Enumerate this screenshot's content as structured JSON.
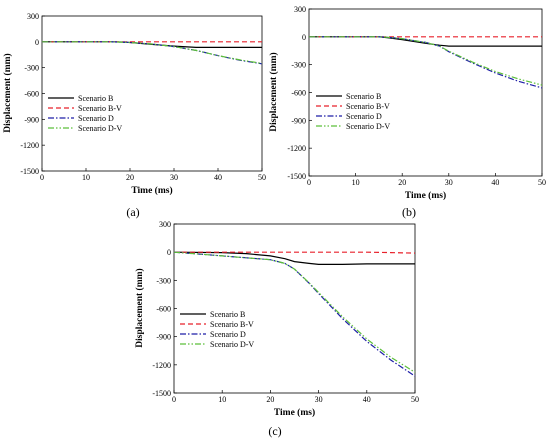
{
  "chart_data": [
    {
      "type": "line",
      "caption": "(a)",
      "xlabel": "Time (ms)",
      "ylabel": "Displacement (mm)",
      "xlim": [
        0,
        50
      ],
      "ylim": [
        -1500,
        300
      ],
      "xticks": [
        0,
        10,
        20,
        30,
        40,
        50
      ],
      "yticks": [
        300,
        0,
        -300,
        -600,
        -900,
        -1200,
        -1500
      ],
      "grid": false,
      "legend_position": "middle-left",
      "series": [
        {
          "name": "Scenario B",
          "color": "#000000",
          "dash": "solid",
          "x": [
            0,
            10,
            15,
            18,
            20,
            25,
            30,
            35,
            40,
            45,
            50
          ],
          "y": [
            0,
            0,
            0,
            -2,
            -8,
            -30,
            -50,
            -65,
            -65,
            -65,
            -65
          ]
        },
        {
          "name": "Scenario B-V",
          "color": "#e8212b",
          "dash": "dashed",
          "x": [
            0,
            10,
            20,
            30,
            40,
            50
          ],
          "y": [
            0,
            0,
            0,
            0,
            0,
            0
          ]
        },
        {
          "name": "Scenario D",
          "color": "#1f1fa8",
          "dash": "dashdot",
          "x": [
            0,
            10,
            15,
            18,
            20,
            25,
            30,
            35,
            40,
            45,
            50
          ],
          "y": [
            0,
            0,
            0,
            -3,
            -8,
            -25,
            -55,
            -100,
            -160,
            -215,
            -255
          ]
        },
        {
          "name": "Scenario D-V",
          "color": "#5cbf3a",
          "dash": "dashdotdot",
          "x": [
            0,
            10,
            15,
            18,
            20,
            25,
            30,
            35,
            40,
            45,
            50
          ],
          "y": [
            0,
            0,
            0,
            -3,
            -8,
            -25,
            -55,
            -100,
            -160,
            -210,
            -250
          ]
        }
      ]
    },
    {
      "type": "line",
      "caption": "(b)",
      "xlabel": "Time (ms)",
      "ylabel": "Displacement (mm)",
      "xlim": [
        0,
        50
      ],
      "ylim": [
        -1500,
        300
      ],
      "xticks": [
        0,
        10,
        20,
        30,
        40,
        50
      ],
      "yticks": [
        300,
        0,
        -300,
        -600,
        -900,
        -1200,
        -1500
      ],
      "grid": false,
      "legend_position": "middle-left",
      "series": [
        {
          "name": "Scenario B",
          "color": "#000000",
          "dash": "solid",
          "x": [
            0,
            10,
            15,
            17,
            20,
            25,
            28,
            30,
            35,
            40,
            45,
            50
          ],
          "y": [
            0,
            0,
            0,
            -10,
            -30,
            -70,
            -90,
            -100,
            -100,
            -100,
            -100,
            -100
          ]
        },
        {
          "name": "Scenario B-V",
          "color": "#e8212b",
          "dash": "dashed",
          "x": [
            0,
            10,
            20,
            30,
            40,
            50
          ],
          "y": [
            0,
            0,
            0,
            0,
            0,
            0
          ]
        },
        {
          "name": "Scenario D",
          "color": "#1f1fa8",
          "dash": "dashdot",
          "x": [
            0,
            10,
            15,
            17,
            20,
            25,
            28,
            30,
            35,
            40,
            45,
            50
          ],
          "y": [
            0,
            0,
            0,
            -5,
            -20,
            -60,
            -100,
            -160,
            -280,
            -390,
            -480,
            -550
          ]
        },
        {
          "name": "Scenario D-V",
          "color": "#5cbf3a",
          "dash": "dashdotdot",
          "x": [
            0,
            10,
            15,
            17,
            20,
            25,
            28,
            30,
            35,
            40,
            45,
            50
          ],
          "y": [
            0,
            0,
            0,
            -5,
            -20,
            -60,
            -100,
            -155,
            -270,
            -375,
            -455,
            -520
          ]
        }
      ]
    },
    {
      "type": "line",
      "caption": "(c)",
      "xlabel": "Time (ms)",
      "ylabel": "Displacement (mm)",
      "xlim": [
        0,
        50
      ],
      "ylim": [
        -1500,
        300
      ],
      "xticks": [
        0,
        10,
        20,
        30,
        40,
        50
      ],
      "yticks": [
        300,
        0,
        -300,
        -600,
        -900,
        -1200,
        -1500
      ],
      "grid": false,
      "legend_position": "middle-left",
      "series": [
        {
          "name": "Scenario B",
          "color": "#000000",
          "dash": "solid",
          "x": [
            0,
            10,
            15,
            20,
            23,
            25,
            28,
            30,
            35,
            40,
            45,
            50
          ],
          "y": [
            0,
            -5,
            -15,
            -40,
            -70,
            -100,
            -120,
            -130,
            -130,
            -125,
            -125,
            -125
          ]
        },
        {
          "name": "Scenario B-V",
          "color": "#e8212b",
          "dash": "dashed",
          "x": [
            0,
            10,
            20,
            30,
            40,
            45,
            50
          ],
          "y": [
            0,
            0,
            0,
            0,
            0,
            -5,
            -10
          ]
        },
        {
          "name": "Scenario D",
          "color": "#1f1fa8",
          "dash": "dashdot",
          "x": [
            0,
            5,
            10,
            15,
            20,
            23,
            25,
            28,
            30,
            35,
            40,
            45,
            50
          ],
          "y": [
            0,
            -20,
            -40,
            -60,
            -80,
            -120,
            -180,
            -330,
            -440,
            -710,
            -950,
            -1150,
            -1320
          ]
        },
        {
          "name": "Scenario D-V",
          "color": "#5cbf3a",
          "dash": "dashdotdot",
          "x": [
            0,
            5,
            10,
            15,
            20,
            23,
            25,
            28,
            30,
            35,
            40,
            45,
            50
          ],
          "y": [
            0,
            -20,
            -40,
            -60,
            -80,
            -120,
            -180,
            -325,
            -430,
            -690,
            -925,
            -1120,
            -1280
          ]
        }
      ]
    }
  ]
}
